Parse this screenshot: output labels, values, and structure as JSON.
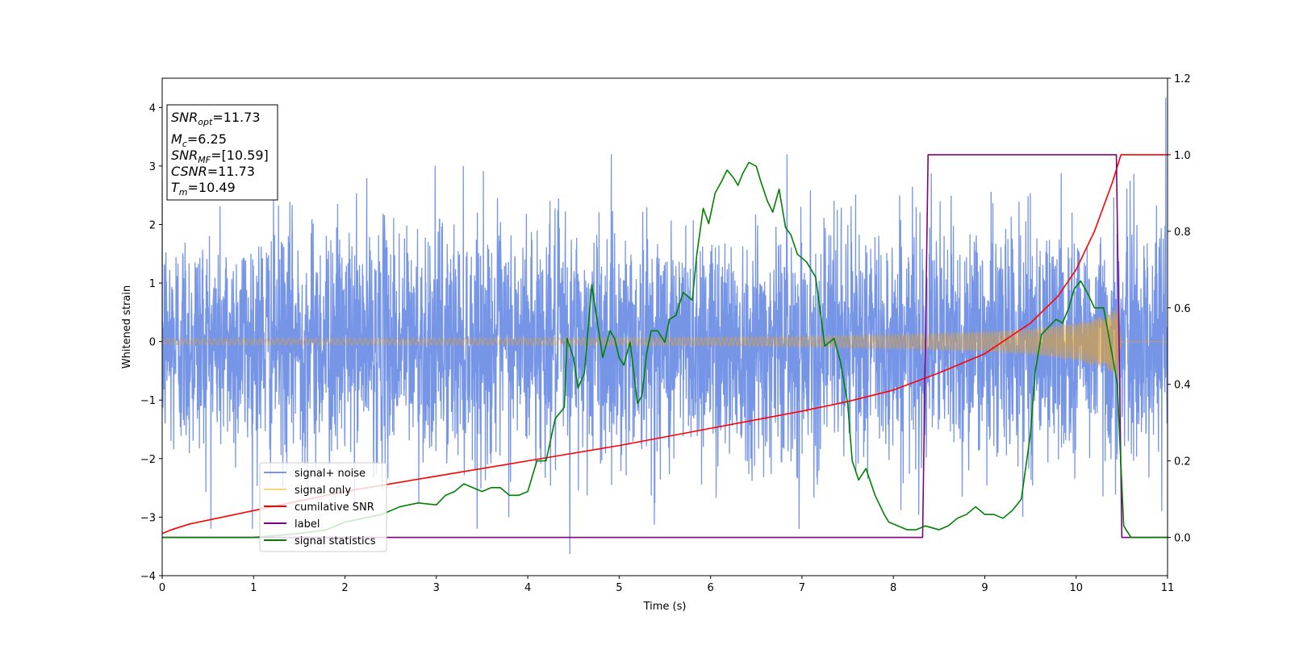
{
  "chart_data": {
    "type": "line",
    "xlabel": "Time (s)",
    "ylabel": "Whitened strain",
    "xlim": [
      0,
      11
    ],
    "ylim_left": [
      -4,
      4.5
    ],
    "ylim_right": [
      -0.1,
      1.2
    ],
    "x_ticks": [
      0,
      1,
      2,
      3,
      4,
      5,
      6,
      7,
      8,
      9,
      10,
      11
    ],
    "y_left_ticks": [
      -4,
      -3,
      -2,
      -1,
      0,
      1,
      2,
      3,
      4
    ],
    "y_right_ticks": [
      0.0,
      0.2,
      0.4,
      0.6,
      0.8,
      1.0,
      1.2
    ],
    "grid": false,
    "legend_position": "lower-left",
    "info_box": [
      {
        "main": "SNR",
        "sub": "opt",
        "rest": "=11.73"
      },
      {
        "main": "M",
        "sub": "c",
        "rest": "=6.25"
      },
      {
        "main": "SNR",
        "sub": "MF",
        "rest": "=[10.59]"
      },
      {
        "main": "CSNR",
        "sub": "",
        "rest": "=11.73"
      },
      {
        "main": "T",
        "sub": "m",
        "rest": "=10.49"
      }
    ],
    "series": [
      {
        "name": "signal+ noise",
        "color": "#6f8fe6",
        "axis": "left",
        "kind": "noise",
        "std": 1.0,
        "peak_max": 4.17,
        "peak_max_x": 10.98,
        "peak_min": -3.63,
        "peak_min_x": 4.46
      },
      {
        "name": "signal only",
        "color": "#ffa500",
        "axis": "left",
        "kind": "chirp",
        "t_merge": 10.49,
        "envelope": {
          "x": [
            0,
            4,
            6,
            7,
            8,
            9,
            9.5,
            10,
            10.2,
            10.4,
            10.49,
            11
          ],
          "y": [
            0.05,
            0.06,
            0.07,
            0.09,
            0.12,
            0.17,
            0.22,
            0.32,
            0.4,
            0.55,
            0.7,
            0
          ]
        }
      },
      {
        "name": "cumilative SNR",
        "color": "#ff0000",
        "axis": "right",
        "kind": "curve",
        "x": [
          0,
          0.1,
          0.3,
          0.5,
          1,
          1.5,
          2,
          3,
          4,
          5,
          6,
          7,
          7.5,
          8,
          8.5,
          9,
          9.5,
          9.8,
          10,
          10.2,
          10.4,
          10.49,
          11
        ],
        "y": [
          0.01,
          0.02,
          0.035,
          0.045,
          0.07,
          0.095,
          0.12,
          0.16,
          0.2,
          0.24,
          0.285,
          0.33,
          0.355,
          0.385,
          0.43,
          0.48,
          0.56,
          0.63,
          0.7,
          0.8,
          0.93,
          1.0,
          1.0
        ]
      },
      {
        "name": "label",
        "color": "#800080",
        "axis": "right",
        "kind": "step",
        "x": [
          0,
          8.32,
          8.38,
          10.44,
          10.5,
          11
        ],
        "y": [
          0,
          0,
          1,
          1,
          0,
          0
        ]
      },
      {
        "name": "signal statistics",
        "color": "#008000",
        "axis": "right",
        "kind": "curve",
        "x": [
          0,
          1,
          1.5,
          1.8,
          2,
          2.2,
          2.4,
          2.6,
          2.8,
          3,
          3.1,
          3.2,
          3.3,
          3.4,
          3.5,
          3.6,
          3.7,
          3.8,
          3.9,
          4.0,
          4.1,
          4.2,
          4.3,
          4.4,
          4.43,
          4.5,
          4.55,
          4.62,
          4.7,
          4.75,
          4.82,
          4.9,
          4.95,
          5.0,
          5.05,
          5.12,
          5.2,
          5.25,
          5.3,
          5.35,
          5.42,
          5.5,
          5.55,
          5.62,
          5.7,
          5.75,
          5.8,
          5.85,
          5.92,
          5.98,
          6.05,
          6.12,
          6.18,
          6.25,
          6.3,
          6.35,
          6.42,
          6.5,
          6.55,
          6.62,
          6.68,
          6.75,
          6.82,
          6.88,
          6.95,
          7.05,
          7.15,
          7.25,
          7.35,
          7.42,
          7.5,
          7.55,
          7.62,
          7.7,
          7.8,
          7.9,
          7.95,
          8.05,
          8.15,
          8.25,
          8.35,
          8.5,
          8.6,
          8.7,
          8.8,
          8.9,
          9.0,
          9.1,
          9.2,
          9.3,
          9.4,
          9.5,
          9.55,
          9.62,
          9.7,
          9.78,
          9.85,
          9.92,
          9.98,
          10.05,
          10.12,
          10.2,
          10.3,
          10.4,
          10.45,
          10.52,
          10.6,
          10.7,
          11
        ],
        "y": [
          0,
          0,
          0.01,
          0.02,
          0.04,
          0.05,
          0.06,
          0.08,
          0.09,
          0.085,
          0.11,
          0.12,
          0.14,
          0.13,
          0.12,
          0.13,
          0.13,
          0.11,
          0.11,
          0.12,
          0.2,
          0.2,
          0.31,
          0.34,
          0.52,
          0.47,
          0.39,
          0.43,
          0.66,
          0.58,
          0.47,
          0.54,
          0.52,
          0.47,
          0.45,
          0.51,
          0.35,
          0.37,
          0.48,
          0.54,
          0.54,
          0.51,
          0.57,
          0.58,
          0.64,
          0.63,
          0.62,
          0.74,
          0.86,
          0.82,
          0.9,
          0.93,
          0.96,
          0.94,
          0.92,
          0.95,
          0.98,
          0.97,
          0.93,
          0.88,
          0.85,
          0.91,
          0.81,
          0.79,
          0.74,
          0.72,
          0.68,
          0.5,
          0.52,
          0.46,
          0.35,
          0.2,
          0.15,
          0.18,
          0.11,
          0.06,
          0.04,
          0.03,
          0.02,
          0.02,
          0.03,
          0.02,
          0.03,
          0.05,
          0.06,
          0.08,
          0.06,
          0.06,
          0.05,
          0.07,
          0.1,
          0.27,
          0.43,
          0.53,
          0.55,
          0.57,
          0.56,
          0.6,
          0.65,
          0.67,
          0.64,
          0.6,
          0.6,
          0.47,
          0.4,
          0.03,
          0.0,
          0.0,
          0
        ]
      }
    ]
  }
}
